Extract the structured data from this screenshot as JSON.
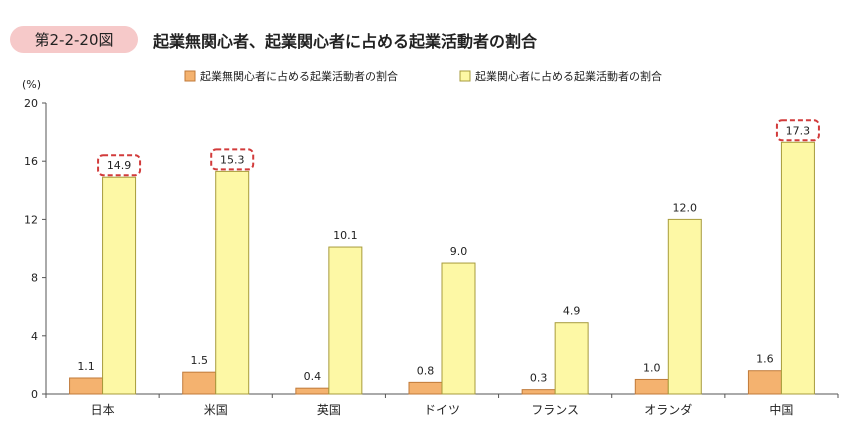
{
  "figure_label": "第2-2-20図",
  "title": "起業無関心者、起業関心者に占める起業活動者の割合",
  "colors": {
    "series1": "#f4b26f",
    "series1_stroke": "#c07a3a",
    "series2": "#fdf8a5",
    "series2_stroke": "#a79b3c",
    "highlight": "#d23b3b",
    "axis": "#555555",
    "badge": "#f6c9c9"
  },
  "chart_data": {
    "type": "bar",
    "ylabel": "(%)",
    "ylim": [
      0,
      20
    ],
    "yticks": [
      0,
      4,
      8,
      12,
      16,
      20
    ],
    "grid": false,
    "legend_position": "top",
    "categories": [
      "日本",
      "米国",
      "英国",
      "ドイツ",
      "フランス",
      "オランダ",
      "中国"
    ],
    "series": [
      {
        "name": "起業無関心者に占める起業活動者の割合",
        "values": [
          1.1,
          1.5,
          0.4,
          0.8,
          0.3,
          1.0,
          1.6
        ],
        "labels": [
          "1.1",
          "1.5",
          "0.4",
          "0.8",
          "0.3",
          "1.0",
          "1.6"
        ]
      },
      {
        "name": "起業関心者に占める起業活動者の割合",
        "values": [
          14.9,
          15.3,
          10.1,
          9.0,
          4.9,
          12.0,
          17.3
        ],
        "labels": [
          "14.9",
          "15.3",
          "10.1",
          "9.0",
          "4.9",
          "12.0",
          "17.3"
        ]
      }
    ],
    "highlighted": [
      {
        "category": "日本",
        "series": 1
      },
      {
        "category": "米国",
        "series": 1
      },
      {
        "category": "中国",
        "series": 1
      }
    ]
  }
}
